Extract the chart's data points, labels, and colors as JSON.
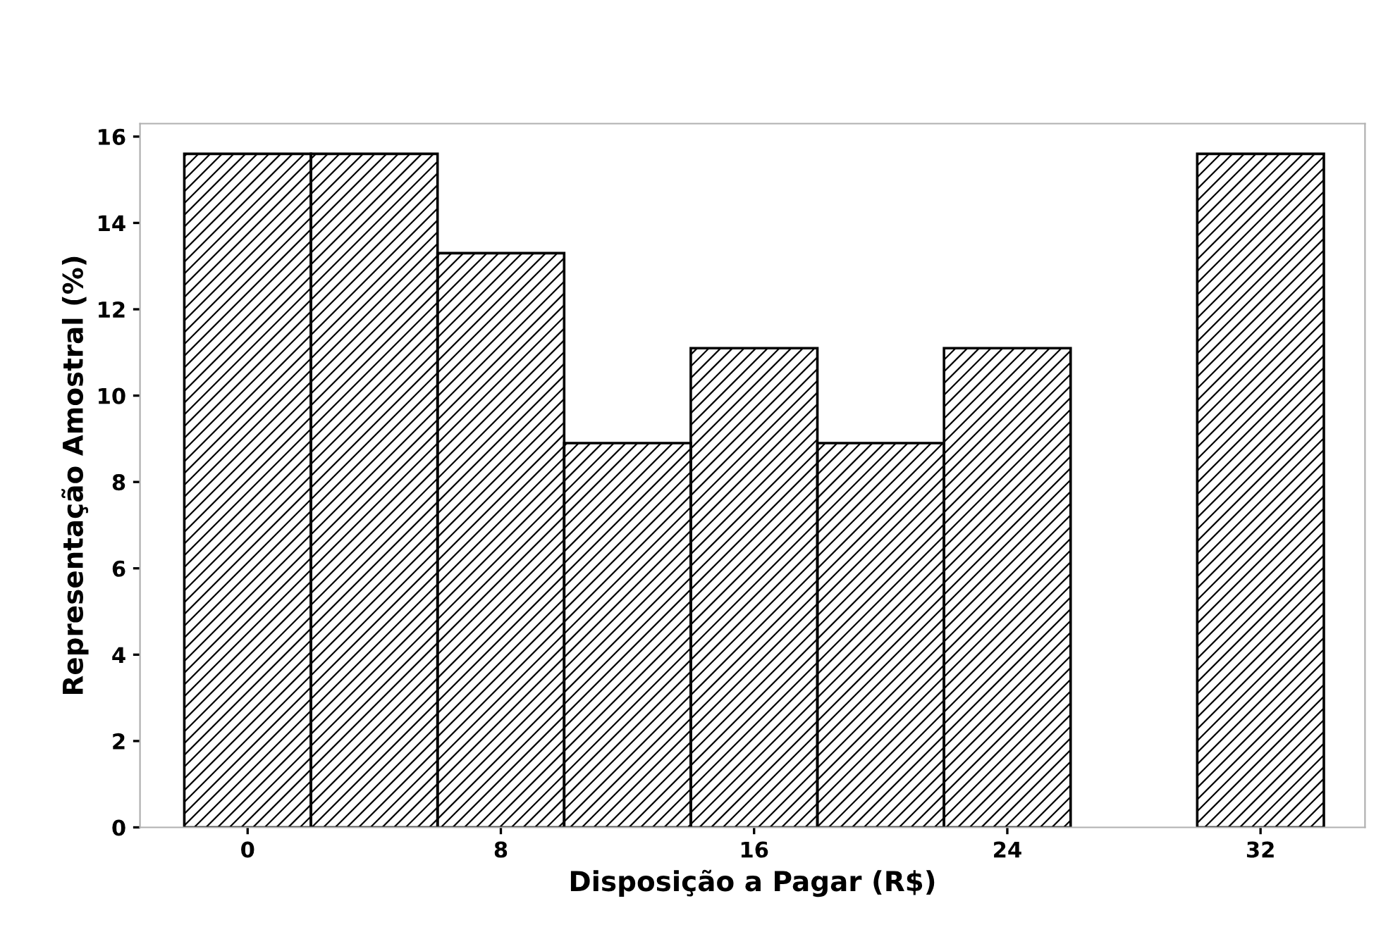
{
  "chart_data": {
    "type": "histogram",
    "xlabel": "Disposição a Pagar (R$)",
    "ylabel": "Representação Amostral (%)",
    "bins": [
      -2,
      2,
      6,
      10,
      14,
      18,
      22,
      26,
      30,
      34
    ],
    "values": [
      15.6,
      15.6,
      13.3,
      8.9,
      11.1,
      8.9,
      11.1,
      0,
      15.6
    ],
    "color": "#000000",
    "xlim": [
      -3.4,
      35.3
    ],
    "ylim": [
      0,
      16.3
    ],
    "xticks": [
      0,
      8,
      16,
      24,
      32
    ],
    "yticks": [
      0,
      2,
      4,
      6,
      8,
      10,
      12,
      14,
      16
    ],
    "grid": false,
    "legend": false
  }
}
